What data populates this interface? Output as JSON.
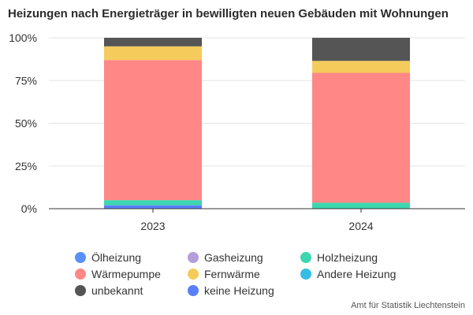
{
  "chart_data": {
    "type": "bar",
    "stacked": true,
    "title": "Heizungen nach Energieträger in bewilligten neuen Gebäuden mit Wohnungen",
    "source": "Amt für Statistik Liechtenstein",
    "categories": [
      "2023",
      "2024"
    ],
    "y_ticks": [
      "0%",
      "25%",
      "50%",
      "75%",
      "100%"
    ],
    "ylim": [
      0,
      100
    ],
    "grid": true,
    "legend_position": "bottom",
    "series": [
      {
        "name": "Ölheizung",
        "color": "#5b8ff9",
        "values": [
          0,
          0
        ]
      },
      {
        "name": "Gasheizung",
        "color": "#b39ddb",
        "values": [
          0,
          0
        ]
      },
      {
        "name": "Holzheizung",
        "color": "#3dd6b0",
        "values": [
          3,
          3.5
        ]
      },
      {
        "name": "Wärmepumpe",
        "color": "#ff8785",
        "values": [
          82,
          76
        ]
      },
      {
        "name": "Fernwärme",
        "color": "#f5cb5c",
        "values": [
          8,
          7
        ]
      },
      {
        "name": "Andere Heizung",
        "color": "#36bde6",
        "values": [
          0,
          0
        ]
      },
      {
        "name": "unbekannt",
        "color": "#555555",
        "values": [
          5,
          13.5
        ]
      },
      {
        "name": "keine Heizung",
        "color": "#5b7ff9",
        "values": [
          2,
          0
        ]
      }
    ],
    "stack_order": [
      "keine Heizung",
      "Ölheizung",
      "Gasheizung",
      "Holzheizung",
      "Wärmepumpe",
      "Fernwärme",
      "Andere Heizung",
      "unbekannt"
    ]
  }
}
